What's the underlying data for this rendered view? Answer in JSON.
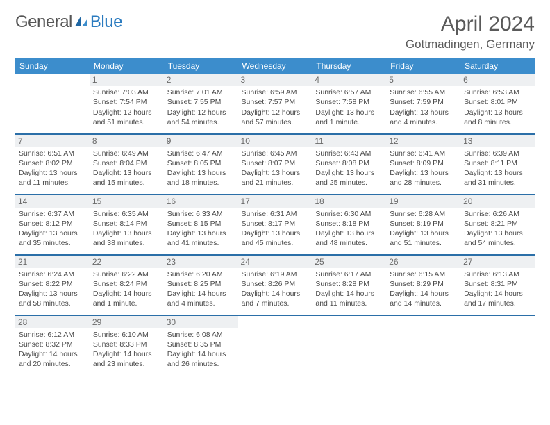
{
  "logo": {
    "text1": "General",
    "text2": "Blue"
  },
  "header": {
    "title": "April 2024",
    "location": "Gottmadingen, Germany"
  },
  "weekdays": [
    "Sunday",
    "Monday",
    "Tuesday",
    "Wednesday",
    "Thursday",
    "Friday",
    "Saturday"
  ],
  "colors": {
    "header_bg": "#3c8dcc",
    "header_text": "#ffffff",
    "daynum_bg": "#eef0f2",
    "rule": "#2b6fa8",
    "text": "#4a4a4a",
    "title": "#5a5a5a"
  },
  "weeks": [
    [
      {
        "n": "",
        "empty": true
      },
      {
        "n": "1",
        "sunrise": "Sunrise: 7:03 AM",
        "sunset": "Sunset: 7:54 PM",
        "day1": "Daylight: 12 hours",
        "day2": "and 51 minutes."
      },
      {
        "n": "2",
        "sunrise": "Sunrise: 7:01 AM",
        "sunset": "Sunset: 7:55 PM",
        "day1": "Daylight: 12 hours",
        "day2": "and 54 minutes."
      },
      {
        "n": "3",
        "sunrise": "Sunrise: 6:59 AM",
        "sunset": "Sunset: 7:57 PM",
        "day1": "Daylight: 12 hours",
        "day2": "and 57 minutes."
      },
      {
        "n": "4",
        "sunrise": "Sunrise: 6:57 AM",
        "sunset": "Sunset: 7:58 PM",
        "day1": "Daylight: 13 hours",
        "day2": "and 1 minute."
      },
      {
        "n": "5",
        "sunrise": "Sunrise: 6:55 AM",
        "sunset": "Sunset: 7:59 PM",
        "day1": "Daylight: 13 hours",
        "day2": "and 4 minutes."
      },
      {
        "n": "6",
        "sunrise": "Sunrise: 6:53 AM",
        "sunset": "Sunset: 8:01 PM",
        "day1": "Daylight: 13 hours",
        "day2": "and 8 minutes."
      }
    ],
    [
      {
        "n": "7",
        "sunrise": "Sunrise: 6:51 AM",
        "sunset": "Sunset: 8:02 PM",
        "day1": "Daylight: 13 hours",
        "day2": "and 11 minutes."
      },
      {
        "n": "8",
        "sunrise": "Sunrise: 6:49 AM",
        "sunset": "Sunset: 8:04 PM",
        "day1": "Daylight: 13 hours",
        "day2": "and 15 minutes."
      },
      {
        "n": "9",
        "sunrise": "Sunrise: 6:47 AM",
        "sunset": "Sunset: 8:05 PM",
        "day1": "Daylight: 13 hours",
        "day2": "and 18 minutes."
      },
      {
        "n": "10",
        "sunrise": "Sunrise: 6:45 AM",
        "sunset": "Sunset: 8:07 PM",
        "day1": "Daylight: 13 hours",
        "day2": "and 21 minutes."
      },
      {
        "n": "11",
        "sunrise": "Sunrise: 6:43 AM",
        "sunset": "Sunset: 8:08 PM",
        "day1": "Daylight: 13 hours",
        "day2": "and 25 minutes."
      },
      {
        "n": "12",
        "sunrise": "Sunrise: 6:41 AM",
        "sunset": "Sunset: 8:09 PM",
        "day1": "Daylight: 13 hours",
        "day2": "and 28 minutes."
      },
      {
        "n": "13",
        "sunrise": "Sunrise: 6:39 AM",
        "sunset": "Sunset: 8:11 PM",
        "day1": "Daylight: 13 hours",
        "day2": "and 31 minutes."
      }
    ],
    [
      {
        "n": "14",
        "sunrise": "Sunrise: 6:37 AM",
        "sunset": "Sunset: 8:12 PM",
        "day1": "Daylight: 13 hours",
        "day2": "and 35 minutes."
      },
      {
        "n": "15",
        "sunrise": "Sunrise: 6:35 AM",
        "sunset": "Sunset: 8:14 PM",
        "day1": "Daylight: 13 hours",
        "day2": "and 38 minutes."
      },
      {
        "n": "16",
        "sunrise": "Sunrise: 6:33 AM",
        "sunset": "Sunset: 8:15 PM",
        "day1": "Daylight: 13 hours",
        "day2": "and 41 minutes."
      },
      {
        "n": "17",
        "sunrise": "Sunrise: 6:31 AM",
        "sunset": "Sunset: 8:17 PM",
        "day1": "Daylight: 13 hours",
        "day2": "and 45 minutes."
      },
      {
        "n": "18",
        "sunrise": "Sunrise: 6:30 AM",
        "sunset": "Sunset: 8:18 PM",
        "day1": "Daylight: 13 hours",
        "day2": "and 48 minutes."
      },
      {
        "n": "19",
        "sunrise": "Sunrise: 6:28 AM",
        "sunset": "Sunset: 8:19 PM",
        "day1": "Daylight: 13 hours",
        "day2": "and 51 minutes."
      },
      {
        "n": "20",
        "sunrise": "Sunrise: 6:26 AM",
        "sunset": "Sunset: 8:21 PM",
        "day1": "Daylight: 13 hours",
        "day2": "and 54 minutes."
      }
    ],
    [
      {
        "n": "21",
        "sunrise": "Sunrise: 6:24 AM",
        "sunset": "Sunset: 8:22 PM",
        "day1": "Daylight: 13 hours",
        "day2": "and 58 minutes."
      },
      {
        "n": "22",
        "sunrise": "Sunrise: 6:22 AM",
        "sunset": "Sunset: 8:24 PM",
        "day1": "Daylight: 14 hours",
        "day2": "and 1 minute."
      },
      {
        "n": "23",
        "sunrise": "Sunrise: 6:20 AM",
        "sunset": "Sunset: 8:25 PM",
        "day1": "Daylight: 14 hours",
        "day2": "and 4 minutes."
      },
      {
        "n": "24",
        "sunrise": "Sunrise: 6:19 AM",
        "sunset": "Sunset: 8:26 PM",
        "day1": "Daylight: 14 hours",
        "day2": "and 7 minutes."
      },
      {
        "n": "25",
        "sunrise": "Sunrise: 6:17 AM",
        "sunset": "Sunset: 8:28 PM",
        "day1": "Daylight: 14 hours",
        "day2": "and 11 minutes."
      },
      {
        "n": "26",
        "sunrise": "Sunrise: 6:15 AM",
        "sunset": "Sunset: 8:29 PM",
        "day1": "Daylight: 14 hours",
        "day2": "and 14 minutes."
      },
      {
        "n": "27",
        "sunrise": "Sunrise: 6:13 AM",
        "sunset": "Sunset: 8:31 PM",
        "day1": "Daylight: 14 hours",
        "day2": "and 17 minutes."
      }
    ],
    [
      {
        "n": "28",
        "sunrise": "Sunrise: 6:12 AM",
        "sunset": "Sunset: 8:32 PM",
        "day1": "Daylight: 14 hours",
        "day2": "and 20 minutes."
      },
      {
        "n": "29",
        "sunrise": "Sunrise: 6:10 AM",
        "sunset": "Sunset: 8:33 PM",
        "day1": "Daylight: 14 hours",
        "day2": "and 23 minutes."
      },
      {
        "n": "30",
        "sunrise": "Sunrise: 6:08 AM",
        "sunset": "Sunset: 8:35 PM",
        "day1": "Daylight: 14 hours",
        "day2": "and 26 minutes."
      },
      {
        "n": "",
        "empty": true
      },
      {
        "n": "",
        "empty": true
      },
      {
        "n": "",
        "empty": true
      },
      {
        "n": "",
        "empty": true
      }
    ]
  ]
}
